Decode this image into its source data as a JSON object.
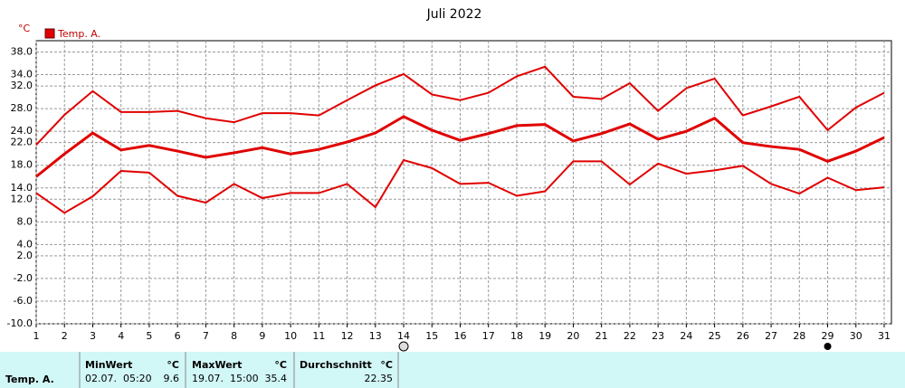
{
  "chart_data": {
    "type": "line",
    "title": "Juli 2022",
    "y_unit": "°C",
    "xlim": [
      1,
      31
    ],
    "xticks": [
      1,
      2,
      3,
      4,
      5,
      6,
      7,
      8,
      9,
      10,
      11,
      12,
      13,
      14,
      15,
      16,
      17,
      18,
      19,
      20,
      21,
      22,
      23,
      24,
      25,
      26,
      27,
      28,
      29,
      30,
      31
    ],
    "x": [
      1,
      2,
      3,
      4,
      5,
      6,
      7,
      8,
      9,
      10,
      11,
      12,
      13,
      14,
      15,
      16,
      17,
      18,
      19,
      20,
      21,
      22,
      23,
      24,
      25,
      26,
      27,
      28,
      29,
      30,
      31
    ],
    "ylim": [
      -10,
      40
    ],
    "yticks": [
      {
        "value": 38,
        "label": "38.0"
      },
      {
        "value": 34,
        "label": "34.0"
      },
      {
        "value": 32,
        "label": "32.0"
      },
      {
        "value": 28,
        "label": "28.0"
      },
      {
        "value": 24,
        "label": "24.0"
      },
      {
        "value": 22,
        "label": "22.0"
      },
      {
        "value": 18,
        "label": "18.0"
      },
      {
        "value": 14,
        "label": "14.0"
      },
      {
        "value": 12,
        "label": "12.0"
      },
      {
        "value": 8,
        "label": "8.0"
      },
      {
        "value": 4,
        "label": "4.0"
      },
      {
        "value": 2,
        "label": "2.0"
      },
      {
        "value": -2,
        "label": "-2.0"
      },
      {
        "value": -6,
        "label": "-6.0"
      },
      {
        "value": -10,
        "label": "-10.0"
      }
    ],
    "grid": true,
    "series": [
      {
        "name": "Temp. A.",
        "color": "#e00000",
        "values": [
          16.0,
          20.0,
          23.7,
          20.7,
          21.5,
          20.5,
          19.4,
          20.2,
          21.1,
          20.0,
          20.8,
          22.1,
          23.7,
          26.6,
          24.2,
          22.4,
          23.6,
          25.0,
          25.2,
          22.3,
          23.6,
          25.3,
          22.6,
          24.0,
          26.3,
          22.0,
          21.3,
          20.8,
          18.7,
          20.5,
          22.9
        ],
        "max": [
          21.6,
          26.9,
          31.1,
          27.4,
          27.4,
          27.6,
          26.3,
          25.6,
          27.2,
          27.2,
          26.8,
          29.5,
          32.1,
          34.1,
          30.5,
          29.5,
          30.8,
          33.7,
          35.4,
          30.1,
          29.7,
          32.5,
          27.6,
          31.6,
          33.3,
          26.8,
          28.4,
          30.1,
          24.2,
          28.2,
          30.8
        ],
        "min": [
          13.1,
          9.6,
          12.5,
          17.0,
          16.7,
          12.6,
          11.4,
          14.7,
          12.2,
          13.1,
          13.1,
          14.7,
          10.6,
          18.9,
          17.5,
          14.7,
          14.9,
          12.6,
          13.4,
          18.7,
          18.7,
          14.6,
          18.3,
          16.5,
          17.1,
          17.9,
          14.7,
          13.0,
          15.8,
          13.6,
          14.1
        ]
      }
    ]
  },
  "stats": {
    "row_label": "Temp. A.",
    "min": {
      "header": "MinWert",
      "unit": "°C",
      "time": "02.07.  05:20",
      "value": 9.6
    },
    "max": {
      "header": "MaxWert",
      "unit": "°C",
      "time": "19.07.  15:00",
      "value": 35.4
    },
    "mean": {
      "header": "Durchschnitt",
      "unit": "°C",
      "value": 22.35
    }
  }
}
